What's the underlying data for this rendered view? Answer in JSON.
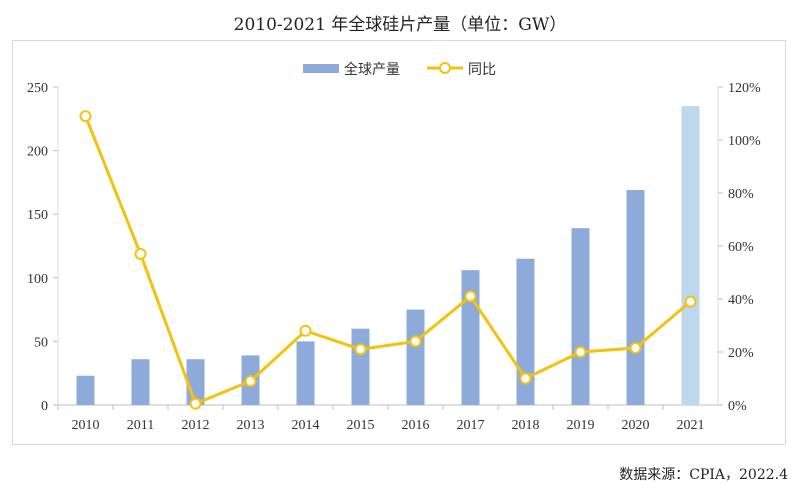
{
  "chart_data": {
    "type": "bar",
    "title": "2010-2021 年全球硅片产量（单位：GW）",
    "categories": [
      "2010",
      "2011",
      "2012",
      "2013",
      "2014",
      "2015",
      "2016",
      "2017",
      "2018",
      "2019",
      "2020",
      "2021"
    ],
    "series": [
      {
        "name": "全球产量",
        "type": "bar",
        "axis": "left",
        "values": [
          23,
          36,
          36,
          39,
          50,
          60,
          75,
          106,
          115,
          139,
          169,
          235
        ],
        "color": "#8eaadb",
        "highlight_color": "#bdd7ee"
      },
      {
        "name": "同比",
        "type": "line",
        "axis": "right",
        "values": [
          109,
          57,
          0.5,
          9,
          28,
          21,
          24,
          41,
          10,
          20,
          21.5,
          39
        ],
        "color": "#f4c20d"
      }
    ],
    "y_left": {
      "ticks": [
        "0",
        "50",
        "100",
        "150",
        "200",
        "250"
      ],
      "range": [
        0,
        250
      ]
    },
    "y_right": {
      "ticks": [
        "0%",
        "20%",
        "40%",
        "60%",
        "80%",
        "100%",
        "120%"
      ],
      "range": [
        0,
        120
      ]
    },
    "legend_position": "top",
    "grid": false
  },
  "source": "数据来源：CPIA，2022.4"
}
